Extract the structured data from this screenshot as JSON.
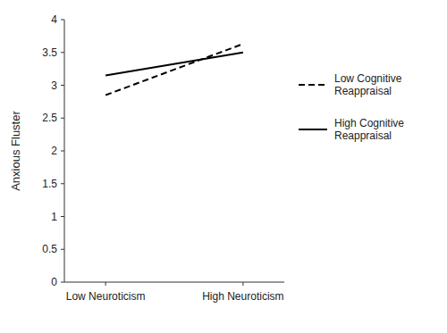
{
  "chart_data": {
    "type": "line",
    "categories": [
      "Low Neuroticism",
      "High Neuroticism"
    ],
    "series": [
      {
        "name": "Low Cognitive\nReappraisal",
        "color": "#000000",
        "line_style": "dashed",
        "values": [
          2.85,
          3.63
        ]
      },
      {
        "name": "High Cognitive\nReappraisal",
        "color": "#000000",
        "line_style": "solid",
        "values": [
          3.15,
          3.5
        ]
      }
    ],
    "y_label": "Anxious Fluster",
    "ylim": [
      0,
      4
    ],
    "yticks": [
      0,
      0.5,
      1,
      1.5,
      2,
      2.5,
      3,
      3.5,
      4
    ],
    "grid": false,
    "legend": "right"
  }
}
